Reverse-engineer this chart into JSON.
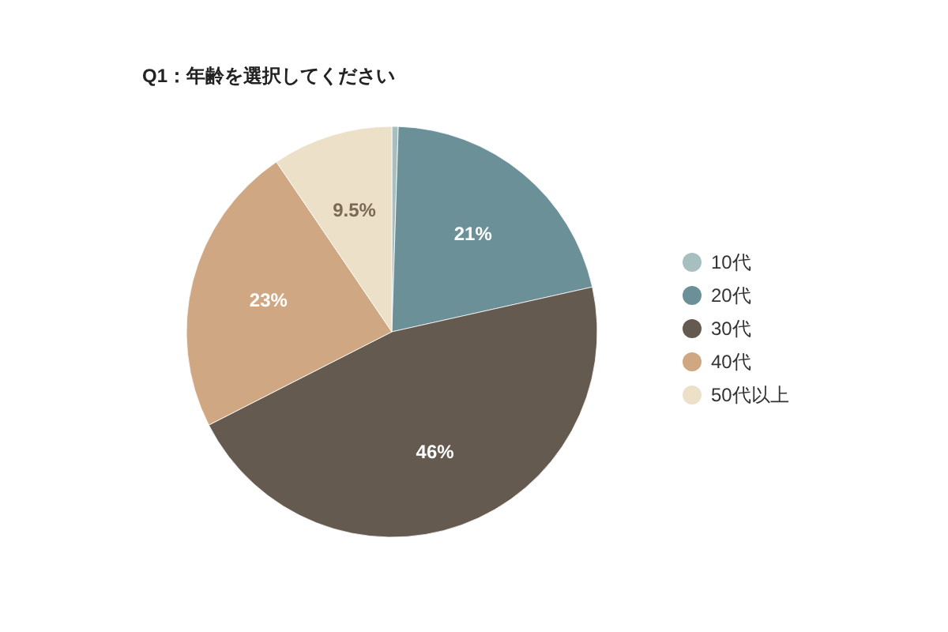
{
  "chart_data": {
    "type": "pie",
    "title": "Q1：年齢を選択してください",
    "categories": [
      "10代",
      "20代",
      "30代",
      "40代",
      "50代以上"
    ],
    "values": [
      0.5,
      21,
      46,
      23,
      9.5
    ],
    "colors": [
      "#a8bfbf",
      "#6b9098",
      "#645a50",
      "#cfa883",
      "#ede0c8"
    ],
    "value_labels": [
      null,
      "21%",
      "46%",
      "23%",
      "9.5%"
    ],
    "legend": "right"
  }
}
